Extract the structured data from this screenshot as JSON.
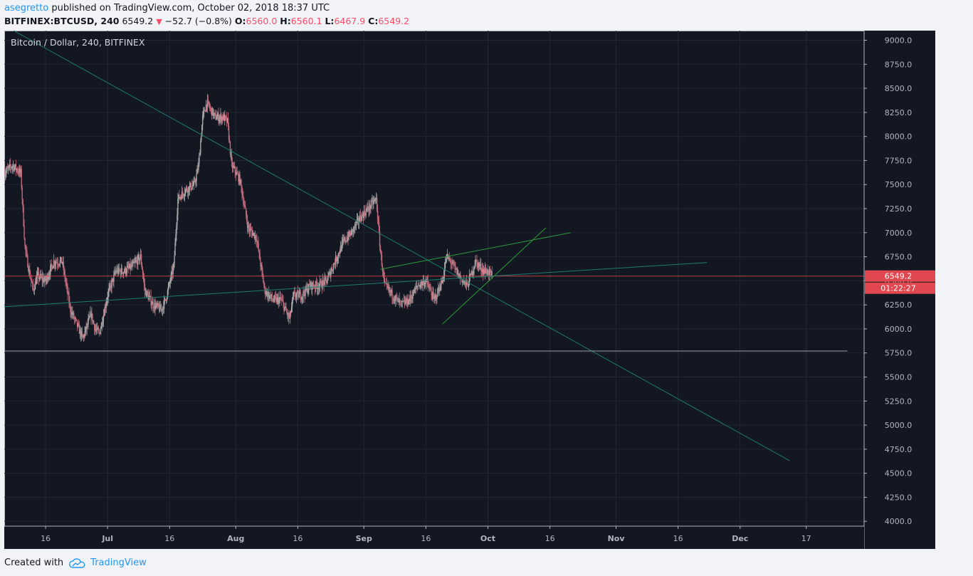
{
  "header": {
    "author": "asegretto",
    "published_text": "published on TradingView.com, October 02, 2018 18:37 UTC"
  },
  "quote": {
    "symbol": "BITFINEX:BTCUSD, 240",
    "last": "6549.2",
    "change": "−52.7 (−0.8%)",
    "open_label": "O:",
    "open": "6560.0",
    "high_label": "H:",
    "high": "6560.1",
    "low_label": "L:",
    "low": "6467.9",
    "close_label": "C:",
    "close": "6549.2"
  },
  "footer": {
    "created_with": "Created with",
    "brand": "TradingView"
  },
  "colors": {
    "background": "#131722",
    "up": "#a9a9a9",
    "down": "#c46a7a",
    "trendline": "#1d7a6e",
    "wedge": "#2e9b3a",
    "support": "#9aa0ab",
    "price_line": "#e0474f",
    "price_label_bg": "#e0474f",
    "accent": "#2196f3"
  },
  "chart_data": {
    "type": "candlestick",
    "title": "Bitcoin / Dollar, 240, BITFINEX",
    "ylim": [
      3950,
      9100
    ],
    "y_ticks": [
      "9000.0",
      "8750.0",
      "8500.0",
      "8250.0",
      "8000.0",
      "7750.0",
      "7500.0",
      "7250.0",
      "7000.0",
      "6750.0",
      "6500.0",
      "6250.0",
      "6000.0",
      "5750.0",
      "5500.0",
      "5250.0",
      "5000.0",
      "4750.0",
      "4500.0",
      "4250.0",
      "4000.0"
    ],
    "x_range": [
      "2018-06-06",
      "2018-12-31"
    ],
    "x_ticks": [
      {
        "date": "2018-06-16",
        "label": "16"
      },
      {
        "date": "2018-07-01",
        "label": "Jul"
      },
      {
        "date": "2018-07-16",
        "label": "16"
      },
      {
        "date": "2018-08-01",
        "label": "Aug"
      },
      {
        "date": "2018-08-16",
        "label": "16"
      },
      {
        "date": "2018-09-01",
        "label": "Sep"
      },
      {
        "date": "2018-09-16",
        "label": "16"
      },
      {
        "date": "2018-10-01",
        "label": "Oct"
      },
      {
        "date": "2018-10-16",
        "label": "16"
      },
      {
        "date": "2018-11-01",
        "label": "Nov"
      },
      {
        "date": "2018-11-16",
        "label": "16"
      },
      {
        "date": "2018-12-01",
        "label": "Dec"
      },
      {
        "date": "2018-12-17",
        "label": "17"
      }
    ],
    "price_path": [
      [
        "2018-06-06",
        7620
      ],
      [
        "2018-06-08",
        7700
      ],
      [
        "2018-06-10",
        7620
      ],
      [
        "2018-06-11",
        6850
      ],
      [
        "2018-06-12",
        6600
      ],
      [
        "2018-06-13",
        6400
      ],
      [
        "2018-06-14",
        6550
      ],
      [
        "2018-06-16",
        6500
      ],
      [
        "2018-06-18",
        6700
      ],
      [
        "2018-06-20",
        6700
      ],
      [
        "2018-06-22",
        6200
      ],
      [
        "2018-06-24",
        6000
      ],
      [
        "2018-06-25",
        5900
      ],
      [
        "2018-06-27",
        6150
      ],
      [
        "2018-06-28",
        6000
      ],
      [
        "2018-06-29",
        5950
      ],
      [
        "2018-07-01",
        6350
      ],
      [
        "2018-07-03",
        6600
      ],
      [
        "2018-07-05",
        6600
      ],
      [
        "2018-07-07",
        6650
      ],
      [
        "2018-07-09",
        6750
      ],
      [
        "2018-07-10",
        6400
      ],
      [
        "2018-07-12",
        6250
      ],
      [
        "2018-07-14",
        6200
      ],
      [
        "2018-07-15",
        6300
      ],
      [
        "2018-07-17",
        6650
      ],
      [
        "2018-07-18",
        7350
      ],
      [
        "2018-07-20",
        7450
      ],
      [
        "2018-07-22",
        7500
      ],
      [
        "2018-07-23",
        7700
      ],
      [
        "2018-07-24",
        8200
      ],
      [
        "2018-07-25",
        8350
      ],
      [
        "2018-07-27",
        8200
      ],
      [
        "2018-07-29",
        8200
      ],
      [
        "2018-07-30",
        8150
      ],
      [
        "2018-07-31",
        7700
      ],
      [
        "2018-08-02",
        7550
      ],
      [
        "2018-08-04",
        7050
      ],
      [
        "2018-08-06",
        6950
      ],
      [
        "2018-08-08",
        6400
      ],
      [
        "2018-08-10",
        6300
      ],
      [
        "2018-08-12",
        6300
      ],
      [
        "2018-08-14",
        6100
      ],
      [
        "2018-08-15",
        6350
      ],
      [
        "2018-08-17",
        6350
      ],
      [
        "2018-08-19",
        6450
      ],
      [
        "2018-08-21",
        6450
      ],
      [
        "2018-08-23",
        6500
      ],
      [
        "2018-08-25",
        6700
      ],
      [
        "2018-08-27",
        6900
      ],
      [
        "2018-08-29",
        7000
      ],
      [
        "2018-08-31",
        7150
      ],
      [
        "2018-09-02",
        7250
      ],
      [
        "2018-09-04",
        7350
      ],
      [
        "2018-09-05",
        6800
      ],
      [
        "2018-09-06",
        6450
      ],
      [
        "2018-09-08",
        6350
      ],
      [
        "2018-09-10",
        6250
      ],
      [
        "2018-09-12",
        6300
      ],
      [
        "2018-09-14",
        6450
      ],
      [
        "2018-09-16",
        6500
      ],
      [
        "2018-09-18",
        6300
      ],
      [
        "2018-09-19",
        6400
      ],
      [
        "2018-09-20",
        6500
      ],
      [
        "2018-09-21",
        6750
      ],
      [
        "2018-09-22",
        6700
      ],
      [
        "2018-09-24",
        6550
      ],
      [
        "2018-09-26",
        6450
      ],
      [
        "2018-09-28",
        6700
      ],
      [
        "2018-09-30",
        6600
      ],
      [
        "2018-10-01",
        6600
      ],
      [
        "2018-10-02",
        6549
      ]
    ],
    "drawings": [
      {
        "name": "Long downtrend line",
        "type": "trendline",
        "color": "trendline",
        "points": [
          [
            "2018-06-07",
            9130
          ],
          [
            "2018-12-13",
            4630
          ]
        ]
      },
      {
        "name": "Rising support line",
        "type": "trendline",
        "color": "trendline",
        "points": [
          [
            "2018-06-06",
            6230
          ],
          [
            "2018-11-23",
            6690
          ]
        ]
      },
      {
        "name": "Horizontal support",
        "type": "horizontal",
        "color": "support",
        "points": [
          [
            "2018-06-06",
            5770
          ],
          [
            "2018-12-27",
            5770
          ]
        ]
      },
      {
        "name": "Wedge upper line",
        "type": "trendline",
        "color": "wedge",
        "points": [
          [
            "2018-09-05",
            6620
          ],
          [
            "2018-10-21",
            7000
          ]
        ]
      },
      {
        "name": "Wedge lower line",
        "type": "trendline",
        "color": "wedge",
        "points": [
          [
            "2018-09-20",
            6050
          ],
          [
            "2018-10-15",
            7050
          ]
        ]
      }
    ],
    "last_price": 6549.2,
    "last_price_label": "6549.2",
    "countdown_label": "01:22:27"
  }
}
